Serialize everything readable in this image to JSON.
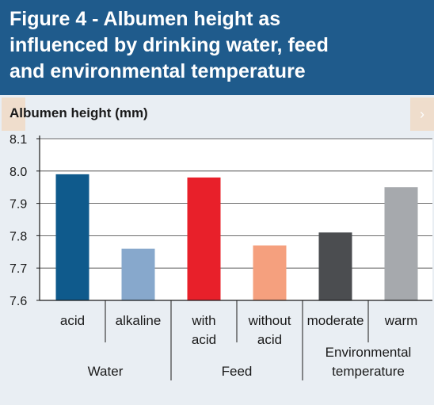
{
  "figure": {
    "title": "Figure 4 - Albumen height as\ninfluenced by drinking water, feed\nand environmental temperature",
    "nav_left": "‹",
    "nav_right": "›"
  },
  "chart_data": {
    "type": "bar",
    "ylabel": "Albumen height (mm)",
    "ylim": [
      7.6,
      8.1
    ],
    "yticks": [
      "8.1",
      "8.0",
      "7.9",
      "7.8",
      "7.7",
      "7.6"
    ],
    "grid": true,
    "bars": [
      {
        "label": [
          "acid"
        ],
        "value": 7.99,
        "color": "#0f5a8c"
      },
      {
        "label": [
          "alkaline"
        ],
        "value": 7.76,
        "color": "#87a8cc"
      },
      {
        "label": [
          "with",
          "acid"
        ],
        "value": 7.98,
        "color": "#e8202a"
      },
      {
        "label": [
          "without",
          "acid"
        ],
        "value": 7.77,
        "color": "#f5a07e"
      },
      {
        "label": [
          "moderate"
        ],
        "value": 7.81,
        "color": "#4b4d50"
      },
      {
        "label": [
          "warm"
        ],
        "value": 7.95,
        "color": "#a6a9ad"
      }
    ],
    "groups": [
      {
        "label": [
          "Water"
        ]
      },
      {
        "label": [
          "Feed"
        ]
      },
      {
        "label": [
          "Environmental",
          "temperature"
        ]
      }
    ]
  }
}
